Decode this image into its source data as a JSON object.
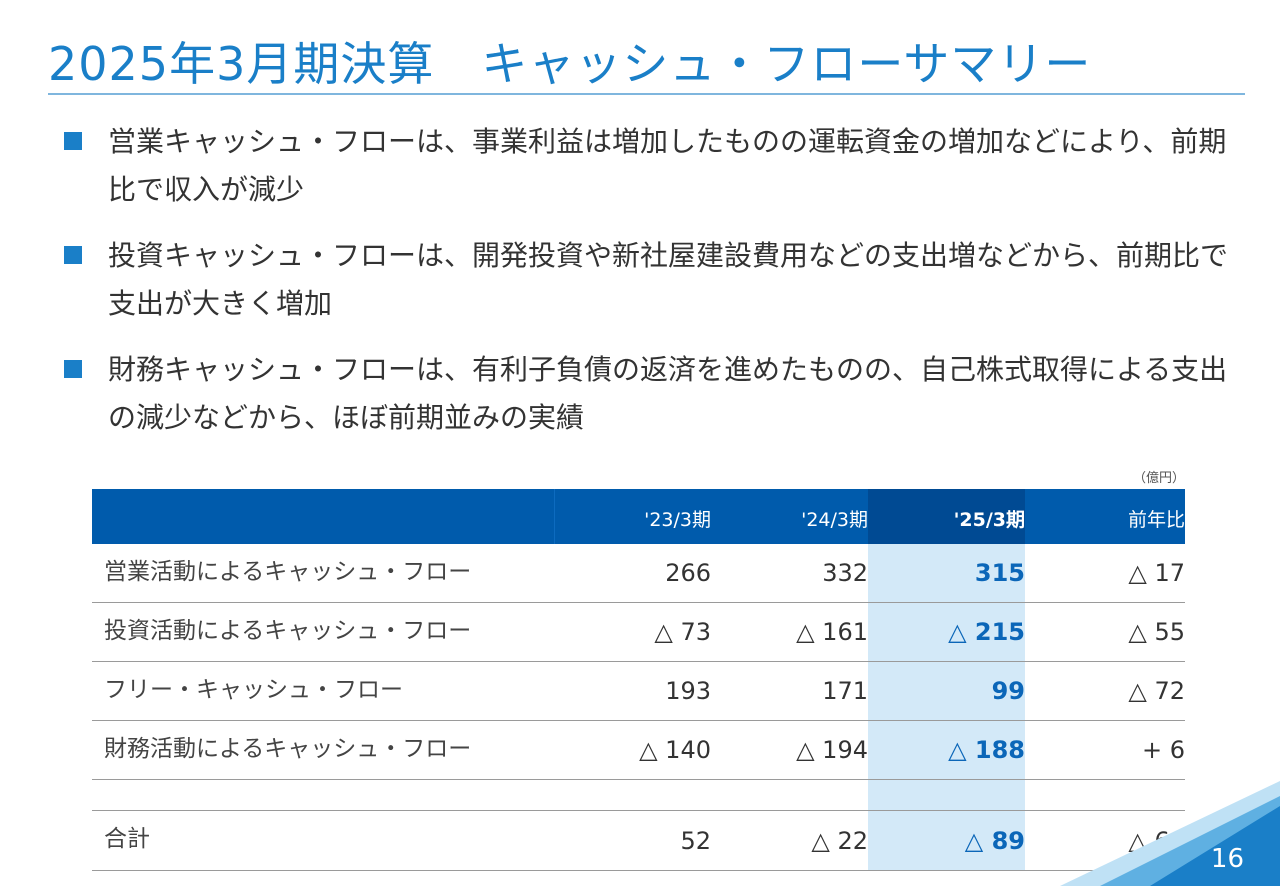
{
  "title": "2025年3月期決算　キャッシュ・フローサマリー",
  "bullets": [
    "営業キャッシュ・フローは、事業利益は増加したものの運転資金の増加などにより、前期比で収入が減少",
    "投資キャッシュ・フローは、開発投資や新社屋建設費用などの支出増などから、前期比で支出が大きく増加",
    "財務キャッシュ・フローは、有利子負債の返済を進めたものの、自己株式取得による支出の減少などから、ほぼ前期並みの実績"
  ],
  "unit": "（億円）",
  "table": {
    "headers": [
      "",
      "'23/3期",
      "'24/3期",
      "'25/3期",
      "前年比"
    ],
    "rows": [
      [
        "営業活動によるキャッシュ・フロー",
        "266",
        "332",
        "315",
        "△ 17"
      ],
      [
        "投資活動によるキャッシュ・フロー",
        "△ 73",
        "△ 161",
        "△ 215",
        "△ 55"
      ],
      [
        "フリー・キャッシュ・フロー",
        "193",
        "171",
        "99",
        "△ 72"
      ],
      [
        "財務活動によるキャッシュ・フロー",
        "△ 140",
        "△ 194",
        "△ 188",
        "+ 6"
      ]
    ],
    "total": [
      "合計",
      "52",
      "△ 22",
      "△ 89",
      "△ 66"
    ]
  },
  "page_number": "16",
  "colors": {
    "accent": "#1a7fc8",
    "header": "#005bac",
    "highlight": "#d3e9f8"
  }
}
